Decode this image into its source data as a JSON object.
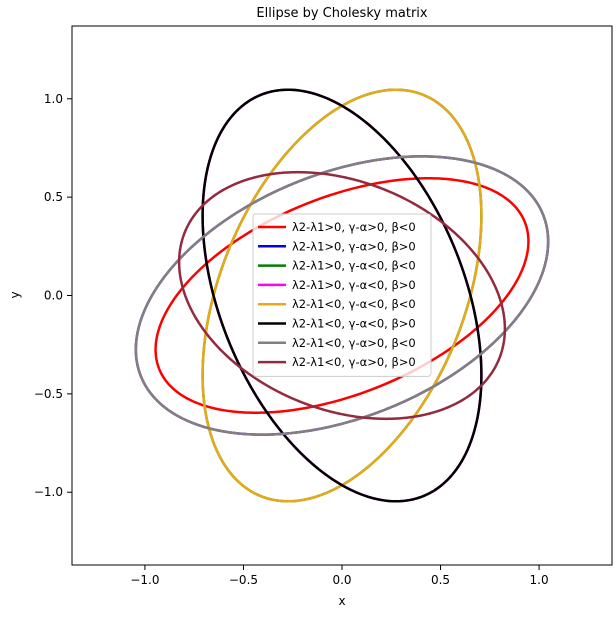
{
  "chart_data": {
    "type": "line",
    "title": "Ellipse by Cholesky matrix",
    "xlabel": "x",
    "ylabel": "y",
    "xlim": [
      -1.37,
      1.37
    ],
    "ylim": [
      -1.37,
      1.37
    ],
    "x_ticks": [
      -1.0,
      -0.5,
      0.0,
      0.5,
      1.0
    ],
    "x_tick_labels": [
      "−1.0",
      "−0.5",
      "0.0",
      "0.5",
      "1.0"
    ],
    "y_ticks": [
      -1.0,
      -0.5,
      0.0,
      0.5,
      1.0
    ],
    "y_tick_labels": [
      "−1.0",
      "−0.5",
      "0.0",
      "0.5",
      "1.0"
    ],
    "grid": false,
    "legend_position": "center",
    "series": [
      {
        "name": "λ2-λ1>0, γ-α>0, β<0",
        "color": "#ff0000",
        "a": 1.0,
        "b": 0.5,
        "angle_deg": 22
      },
      {
        "name": "λ2-λ1>0, γ-α>0, β>0",
        "color": "#0000ff",
        "a": 1.1,
        "b": 0.62,
        "angle_deg": 22
      },
      {
        "name": "λ2-λ1>0, γ-α<0, β<0",
        "color": "#008000",
        "a": 1.1,
        "b": 0.62,
        "angle_deg": 68
      },
      {
        "name": "λ2-λ1>0, γ-α<0, β>0",
        "color": "#ff00ff",
        "a": 1.1,
        "b": 0.62,
        "angle_deg": 112
      },
      {
        "name": "λ2-λ1<0, γ-α<0, β<0",
        "color": "#e5a91c",
        "a": 1.1,
        "b": 0.62,
        "angle_deg": 68
      },
      {
        "name": "λ2-λ1<0, γ-α<0, β>0",
        "color": "#000000",
        "a": 1.1,
        "b": 0.62,
        "angle_deg": 112
      },
      {
        "name": "λ2-λ1<0, γ-α>0, β<0",
        "color": "#887d7d",
        "a": 1.1,
        "b": 0.62,
        "angle_deg": 22
      },
      {
        "name": "λ2-λ1<0, γ-α>0, β>0",
        "color": "#932a40",
        "a": 0.86,
        "b": 0.58,
        "angle_deg": 158
      }
    ]
  }
}
